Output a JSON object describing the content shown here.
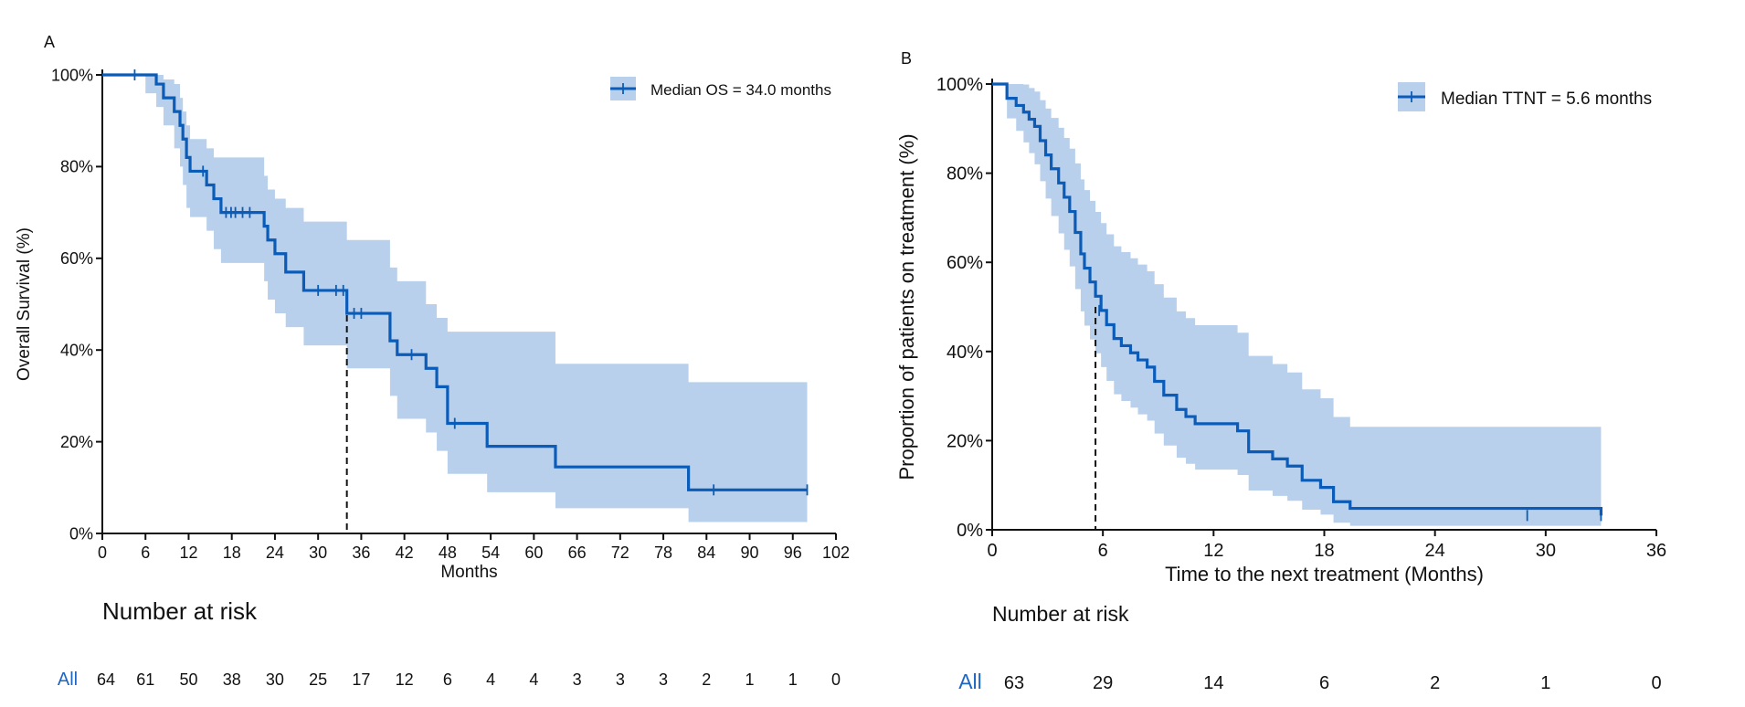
{
  "colors": {
    "line": "#0a5cb8",
    "band": "#b8d0ec",
    "axis": "#111111",
    "risk_label": "#1f66c2"
  },
  "chart_data": [
    {
      "id": "A",
      "panel_label": "A",
      "type": "line",
      "title": "",
      "xlabel": "Months",
      "ylabel": "Overall Survival (%)",
      "xlim": [
        0,
        102
      ],
      "ylim": [
        0,
        100
      ],
      "xticks": [
        0,
        6,
        12,
        18,
        24,
        30,
        36,
        42,
        48,
        54,
        60,
        66,
        72,
        78,
        84,
        90,
        96,
        102
      ],
      "yticks": [
        0,
        20,
        40,
        60,
        80,
        100
      ],
      "ytick_labels": [
        "0%",
        "20%",
        "40%",
        "60%",
        "80%",
        "100%"
      ],
      "legend": {
        "label": "Median OS = 34.0 months",
        "position": "top-right"
      },
      "median": 34.0,
      "series": [
        {
          "name": "All",
          "x": [
            0,
            6,
            7.5,
            8.5,
            10,
            10.8,
            11.2,
            11.7,
            12.2,
            12.9,
            14.5,
            15.5,
            16.5,
            22.5,
            23,
            24,
            25.5,
            28,
            33.5,
            34,
            40,
            41,
            44,
            45,
            46.5,
            48,
            53.5,
            63,
            81.5,
            98
          ],
          "y": [
            100,
            100,
            98,
            95,
            92,
            89,
            86,
            82,
            79,
            79,
            76,
            73,
            70,
            67,
            64,
            61,
            57,
            53,
            53,
            48,
            42,
            39,
            39,
            36,
            32,
            24,
            19,
            14.5,
            9.5,
            9.5
          ],
          "lower": [
            100,
            96,
            93,
            89,
            84,
            80,
            76,
            71,
            69,
            69,
            66,
            62,
            59,
            55,
            51,
            48,
            45,
            41,
            41,
            36,
            30,
            25,
            25,
            22,
            18,
            13,
            9,
            5.5,
            2.5,
            2.5
          ],
          "upper": [
            100,
            100,
            100,
            99,
            98,
            95,
            92,
            89,
            86,
            86,
            84,
            82,
            82,
            78,
            75,
            73,
            71,
            68,
            68,
            64,
            58,
            55,
            55,
            50,
            47,
            44,
            44,
            37,
            33,
            33
          ],
          "censor_x": [
            4.5,
            14,
            17.2,
            17.9,
            18.5,
            19.5,
            20.5,
            30,
            32.5,
            33.5,
            35,
            36,
            43,
            49,
            85,
            98
          ],
          "censor_y": [
            100,
            79,
            70,
            70,
            70,
            70,
            70,
            53,
            53,
            53,
            48,
            48,
            39,
            24,
            9.5,
            9.5
          ]
        }
      ],
      "risk_table": {
        "title": "Number at risk",
        "row_label": "All",
        "times": [
          0,
          6,
          12,
          18,
          24,
          30,
          36,
          42,
          48,
          54,
          60,
          66,
          72,
          78,
          84,
          90,
          96,
          102
        ],
        "counts": [
          "64",
          "61",
          "50",
          "38",
          "30",
          "25",
          "17",
          "12",
          "6",
          "4",
          "4",
          "3",
          "3",
          "3",
          "2",
          "1",
          "1",
          "0"
        ]
      }
    },
    {
      "id": "B",
      "panel_label": "B",
      "type": "line",
      "title": "",
      "xlabel": "Time to the next treatment (Months)",
      "ylabel": "Proportion of patients on treatment (%)",
      "xlim": [
        0,
        36
      ],
      "ylim": [
        0,
        100
      ],
      "xticks": [
        0,
        6,
        12,
        18,
        24,
        30,
        36
      ],
      "yticks": [
        0,
        20,
        40,
        60,
        80,
        100
      ],
      "ytick_labels": [
        "0%",
        "20%",
        "40%",
        "60%",
        "80%",
        "100%"
      ],
      "legend": {
        "label": "Median TTNT = 5.6 months",
        "position": "top-right"
      },
      "median": 5.6,
      "series": [
        {
          "name": "All",
          "x": [
            0,
            0.8,
            1.3,
            1.7,
            2.0,
            2.3,
            2.6,
            2.9,
            3.2,
            3.6,
            3.9,
            4.2,
            4.5,
            4.8,
            5.0,
            5.3,
            5.6,
            5.9,
            6.2,
            6.6,
            7.0,
            7.5,
            7.9,
            8.4,
            8.8,
            9.3,
            10.0,
            10.5,
            11.0,
            13.3,
            13.9,
            15.2,
            16.0,
            16.8,
            17.8,
            18.5,
            19.4,
            33
          ],
          "y": [
            100,
            96.8,
            95.2,
            93.7,
            92.1,
            90.5,
            87.3,
            84.1,
            81.0,
            77.8,
            74.6,
            71.4,
            66.7,
            61.9,
            58.7,
            55.6,
            52.4,
            49.2,
            46.0,
            42.9,
            41.3,
            39.7,
            38.1,
            36.5,
            33.3,
            30.2,
            27.0,
            25.4,
            23.8,
            22.2,
            17.5,
            15.9,
            14.3,
            11.1,
            9.5,
            6.3,
            4.8,
            3.2
          ],
          "lower": [
            100,
            92.3,
            89.5,
            86.9,
            84.5,
            82.0,
            78.2,
            74.3,
            70.4,
            66.5,
            62.8,
            59.1,
            54.0,
            49.0,
            45.8,
            42.7,
            39.6,
            36.5,
            33.4,
            30.4,
            28.9,
            27.4,
            25.9,
            24.5,
            21.6,
            18.9,
            16.2,
            14.8,
            13.5,
            12.3,
            8.8,
            7.6,
            6.5,
            4.5,
            3.4,
            1.6,
            0.9,
            0.4
          ],
          "upper": [
            100,
            100,
            100,
            99.9,
            99.1,
            98.3,
            96.4,
            94.5,
            92.4,
            90.2,
            87.9,
            85.5,
            82.2,
            78.6,
            76.2,
            73.8,
            71.3,
            68.8,
            66.3,
            63.6,
            62.3,
            60.9,
            59.5,
            58.0,
            55.1,
            52.1,
            49.0,
            47.5,
            45.9,
            44.2,
            39.0,
            37.2,
            35.3,
            31.5,
            29.5,
            25.3,
            23.1,
            14.3
          ],
          "censor_x": [
            5.8,
            29.0,
            33.0
          ],
          "censor_y": [
            49.2,
            3.2,
            3.2
          ]
        }
      ],
      "risk_table": {
        "title": "Number at risk",
        "row_label": "All",
        "times": [
          0,
          6,
          12,
          18,
          24,
          30,
          36
        ],
        "counts": [
          "63",
          "29",
          "14",
          "6",
          "2",
          "1",
          "0"
        ]
      }
    }
  ]
}
